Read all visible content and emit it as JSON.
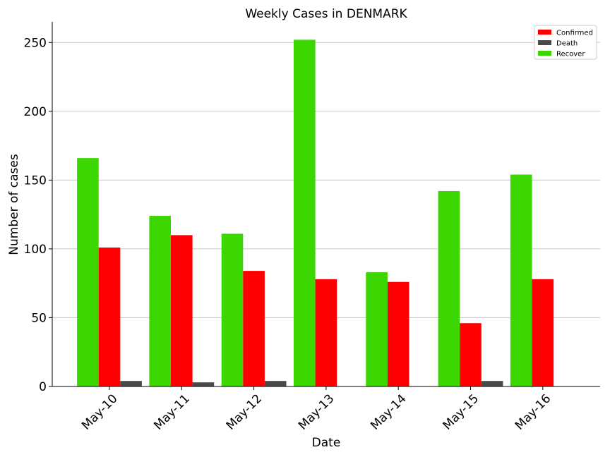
{
  "chart_data": {
    "type": "bar",
    "title": "Weekly Cases in DENMARK",
    "xlabel": "Date",
    "ylabel": "Number of cases",
    "categories": [
      "May-10",
      "May-11",
      "May-12",
      "May-13",
      "May-14",
      "May-15",
      "May-16"
    ],
    "series": [
      {
        "name": "Recover",
        "color": "#3cd600",
        "values": [
          166,
          124,
          111,
          252,
          83,
          142,
          154
        ]
      },
      {
        "name": "Confirmed",
        "color": "#ff0000",
        "values": [
          101,
          110,
          84,
          78,
          76,
          46,
          78
        ]
      },
      {
        "name": "Death",
        "color": "#4a4a4a",
        "values": [
          4,
          3,
          4,
          0,
          0,
          4,
          0
        ]
      }
    ],
    "legend_order": [
      "Confirmed",
      "Death",
      "Recover"
    ],
    "ylim": [
      0,
      265
    ],
    "yticks": [
      0,
      50,
      100,
      150,
      200,
      250
    ],
    "grid": "y",
    "legend": "top-right"
  }
}
